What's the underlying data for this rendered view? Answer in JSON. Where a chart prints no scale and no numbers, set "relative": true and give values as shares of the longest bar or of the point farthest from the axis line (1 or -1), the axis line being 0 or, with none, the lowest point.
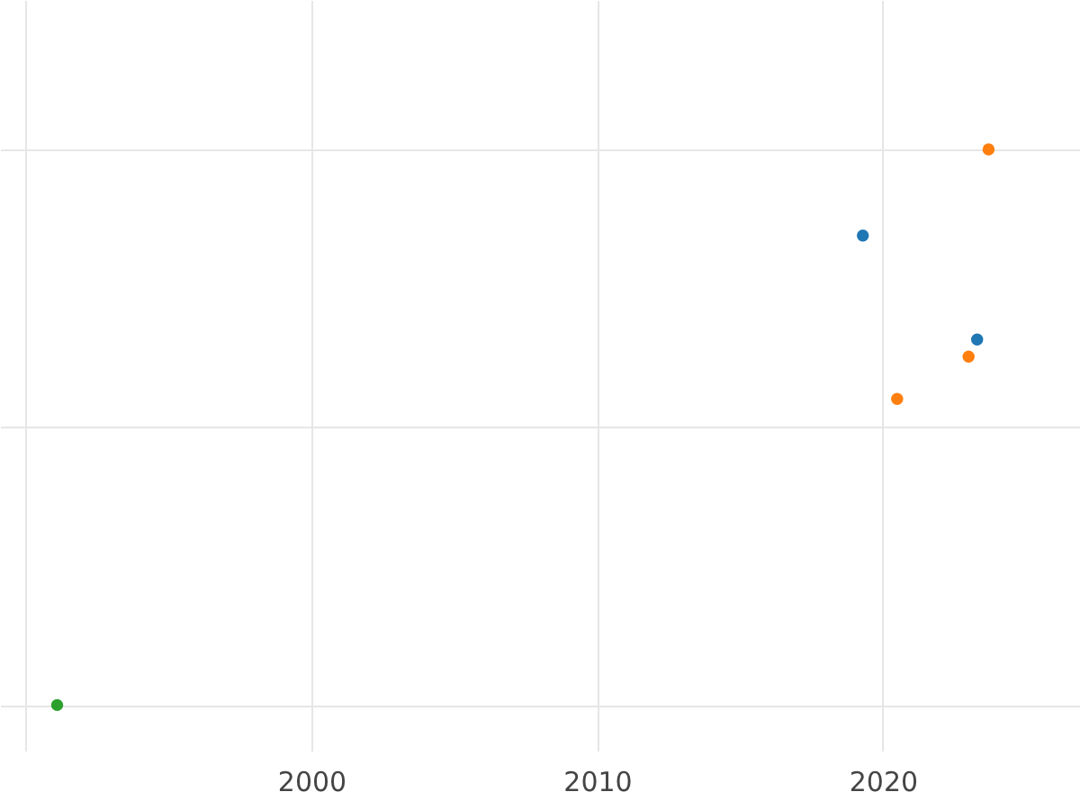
{
  "chart_data": {
    "type": "scatter",
    "relative": true,
    "xlim": [
      1989.1,
      2026.9
    ],
    "xticks": [
      {
        "value": 1990,
        "label": null
      },
      2000,
      2010,
      2020
    ],
    "grid": true,
    "legend": false,
    "marker": "circle",
    "series": [
      {
        "color": "#1f77b4",
        "x": [
          2019.3,
          2023.3
        ],
        "values": [
          0.845,
          0.658
        ]
      },
      {
        "color": "#ff7f0e",
        "x": [
          2023.7,
          2023.0,
          2020.5
        ],
        "values": [
          1,
          0.627,
          0.551
        ]
      },
      {
        "color": "#2ca02c",
        "x": [
          1991.1
        ],
        "values": [
          0
        ]
      }
    ]
  }
}
